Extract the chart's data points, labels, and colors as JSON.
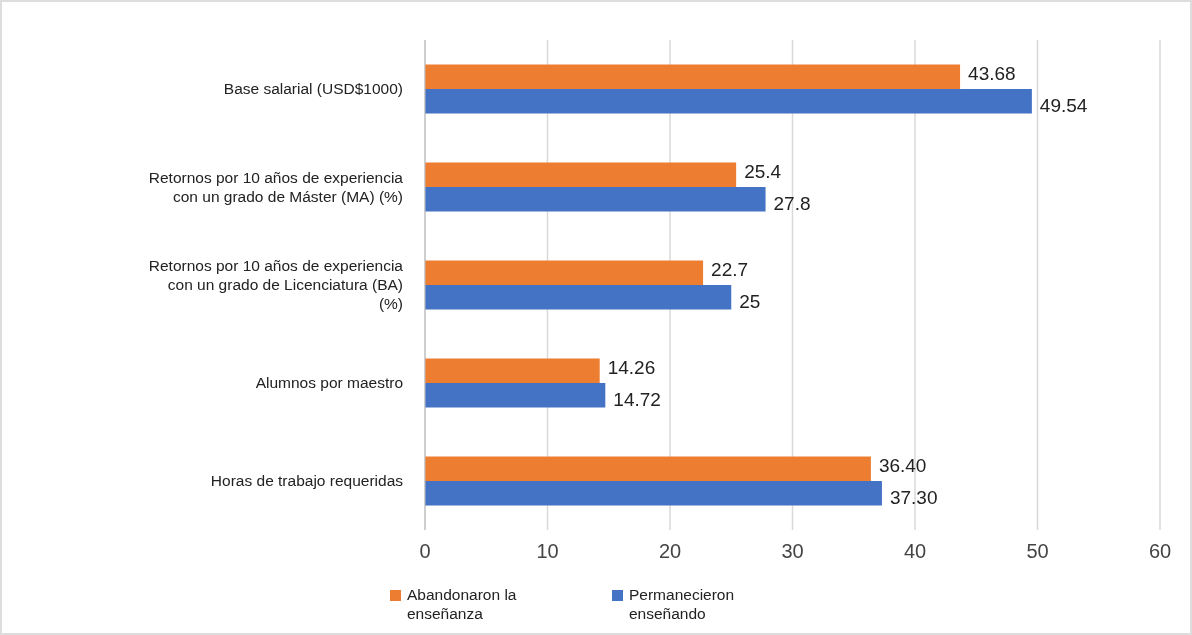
{
  "chart_data": {
    "type": "bar",
    "orientation": "horizontal",
    "categories": [
      "Base salarial (USD$1000)",
      "Retornos por 10 años de experiencia con un grado de Máster (MA) (%)",
      "Retornos por 10 años de experiencia con un grado de Licenciatura (BA) (%)",
      "Alumnos por maestro",
      "Horas de trabajo requeridas"
    ],
    "series": [
      {
        "name": "Abandonaron la enseñanza",
        "color": "#ed7d31",
        "values": [
          43.68,
          25.4,
          22.7,
          14.26,
          36.4
        ],
        "value_labels": [
          "43.68",
          "25.4",
          "22.7",
          "14.26",
          "36.40"
        ]
      },
      {
        "name": "Permanecieron enseñando",
        "color": "#4472c4",
        "values": [
          49.54,
          27.8,
          25,
          14.72,
          37.3
        ],
        "value_labels": [
          "49.54",
          "27.8",
          "25",
          "14.72",
          "37.30"
        ]
      }
    ],
    "xlim": [
      0,
      60
    ],
    "xticks": [
      0,
      10,
      20,
      30,
      40,
      50,
      60
    ],
    "grid": "x",
    "legend": "bottom"
  }
}
